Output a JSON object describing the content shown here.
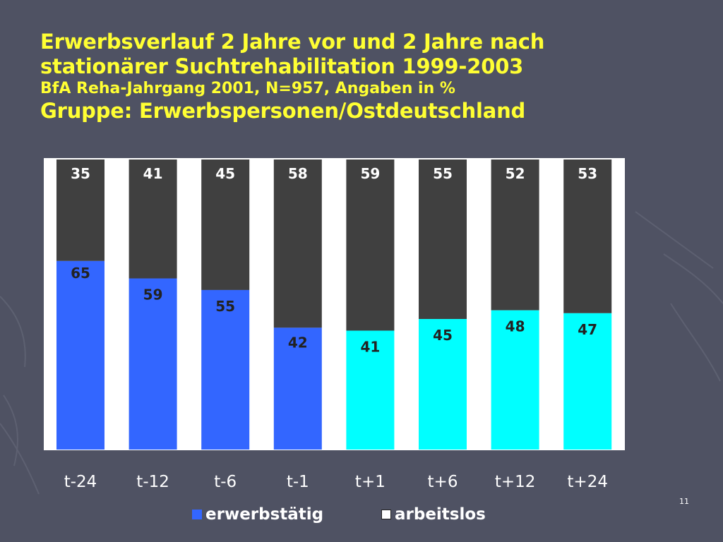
{
  "title": {
    "line1": "Erwerbsverlauf 2 Jahre vor und 2 Jahre nach",
    "line2": "stationärer Suchtrehabilitation 1999-2003",
    "line3": "BfA Reha-Jahrgang 2001, N=957, Angaben in %",
    "line4": "Gruppe: Erwerbspersonen/Ostdeutschland"
  },
  "page_number": "11",
  "colors": {
    "background": "#4f5263",
    "title": "#ffff33",
    "plot_area": "#ffffff",
    "arbeitslos": "#404040",
    "erwerbstaetig_before": "#3366ff",
    "erwerbstaetig_after": "#00ffff"
  },
  "chart_data": {
    "type": "bar",
    "stacked": true,
    "categories": [
      "t-24",
      "t-12",
      "t-6",
      "t-1",
      "t+1",
      "t+6",
      "t+12",
      "t+24"
    ],
    "series": [
      {
        "name": "erwerbstätig",
        "values": [
          65,
          59,
          55,
          42,
          41,
          45,
          48,
          47
        ]
      },
      {
        "name": "arbeitslos",
        "values": [
          35,
          41,
          45,
          58,
          59,
          55,
          52,
          53
        ]
      }
    ],
    "ylim": [
      0,
      100
    ],
    "grid": false,
    "legend_position": "bottom"
  },
  "legend": {
    "erwerbstaetig_label": "erwerbstätig",
    "arbeitslos_label": "arbeitslos"
  }
}
